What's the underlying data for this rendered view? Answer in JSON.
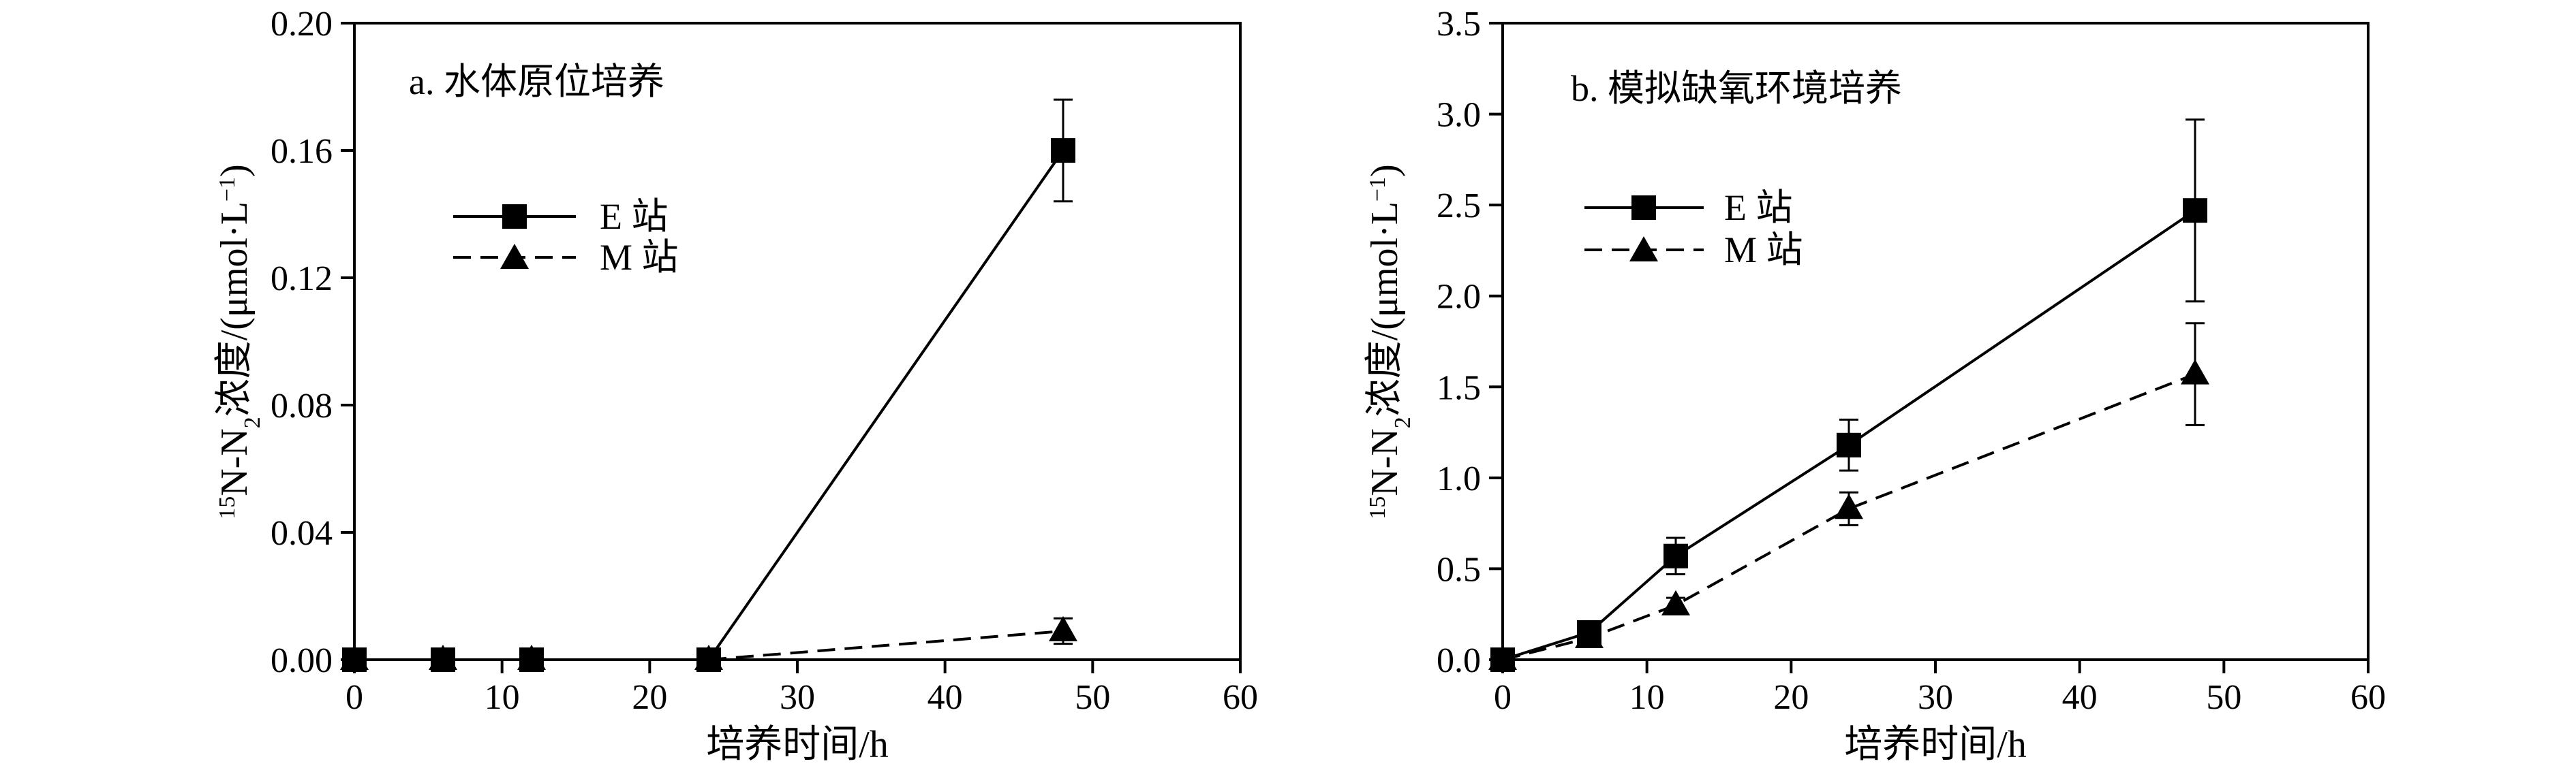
{
  "chart_data": [
    {
      "type": "line",
      "panel_title": "a. 水体原位培养",
      "xlabel": "培养时间/h",
      "ylabel_sup": "15",
      "ylabel_main": "N-N",
      "ylabel_sub": "2",
      "ylabel_rest": "浓度/(μmol·L",
      "ylabel_exp": "−1",
      "ylabel_end": ")",
      "xlim": [
        0,
        60
      ],
      "ylim": [
        0,
        0.2
      ],
      "xticks": [
        0,
        10,
        20,
        30,
        40,
        50,
        60
      ],
      "xtick_labels": [
        "0",
        "10",
        "20",
        "30",
        "40",
        "50",
        "60"
      ],
      "yticks": [
        0,
        0.04,
        0.08,
        0.12,
        0.16,
        0.2
      ],
      "ytick_labels": [
        "0.00",
        "0.04",
        "0.08",
        "0.12",
        "0.16",
        "0.20"
      ],
      "legend_position": "upper-left",
      "series": [
        {
          "name": "E 站",
          "marker": "square",
          "line": "solid",
          "x": [
            0,
            6,
            12,
            24,
            48
          ],
          "y": [
            0,
            0,
            0,
            0,
            0.16
          ],
          "err": [
            0.003,
            0.003,
            0.003,
            0.003,
            0.016
          ]
        },
        {
          "name": "M 站",
          "marker": "triangle",
          "line": "dashed",
          "x": [
            0,
            6,
            12,
            24,
            48
          ],
          "y": [
            0,
            0,
            0,
            0,
            0.009
          ],
          "err": [
            0.003,
            0.003,
            0.003,
            0.003,
            0.004
          ]
        }
      ]
    },
    {
      "type": "line",
      "panel_title": "b. 模拟缺氧环境培养",
      "xlabel": "培养时间/h",
      "ylabel_sup": "15",
      "ylabel_main": "N-N",
      "ylabel_sub": "2",
      "ylabel_rest": "浓度/(μmol·L",
      "ylabel_exp": "−1",
      "ylabel_end": ")",
      "xlim": [
        0,
        60
      ],
      "ylim": [
        0,
        3.5
      ],
      "xticks": [
        0,
        10,
        20,
        30,
        40,
        50,
        60
      ],
      "xtick_labels": [
        "0",
        "10",
        "20",
        "30",
        "40",
        "50",
        "60"
      ],
      "yticks": [
        0,
        0.5,
        1.0,
        1.5,
        2.0,
        2.5,
        3.0,
        3.5
      ],
      "ytick_labels": [
        "0.0",
        "0.5",
        "1.0",
        "1.5",
        "2.0",
        "2.5",
        "3.0",
        "3.5"
      ],
      "legend_position": "upper-left",
      "series": [
        {
          "name": "E 站",
          "marker": "square",
          "line": "solid",
          "x": [
            0,
            6,
            12,
            24,
            48
          ],
          "y": [
            0,
            0.15,
            0.57,
            1.18,
            2.47
          ],
          "err": [
            0.02,
            0.03,
            0.1,
            0.14,
            0.5
          ]
        },
        {
          "name": "M 站",
          "marker": "triangle",
          "line": "dashed",
          "x": [
            0,
            6,
            12,
            24,
            48
          ],
          "y": [
            0,
            0.12,
            0.3,
            0.83,
            1.57
          ],
          "err": [
            0.02,
            0.02,
            0.04,
            0.09,
            0.28
          ]
        }
      ]
    }
  ]
}
